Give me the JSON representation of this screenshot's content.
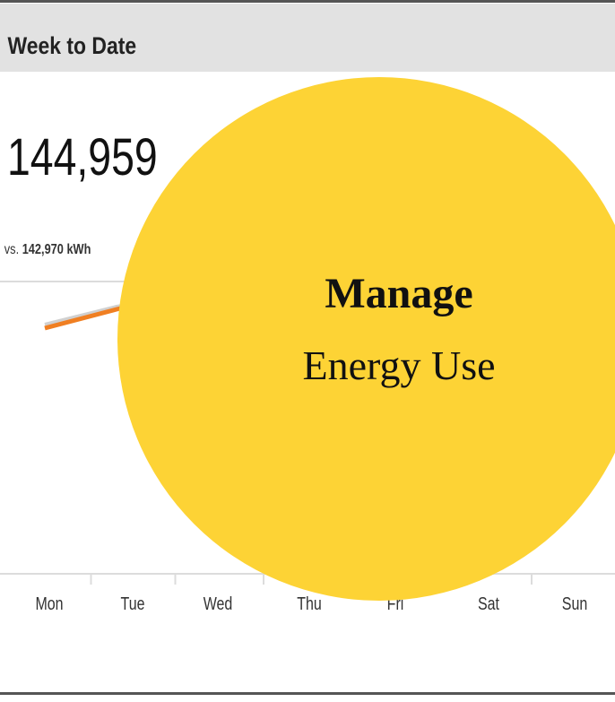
{
  "header": {
    "title": "Week to Date"
  },
  "summary": {
    "value": "144,959",
    "comparison_prefix": "vs.",
    "comparison": "142,970 kWh"
  },
  "days": [
    "Mon",
    "Tue",
    "Wed",
    "Thu",
    "Fri",
    "Sat",
    "Sun"
  ],
  "badge": {
    "title": "Manage",
    "subtitle": "Energy Use"
  }
}
